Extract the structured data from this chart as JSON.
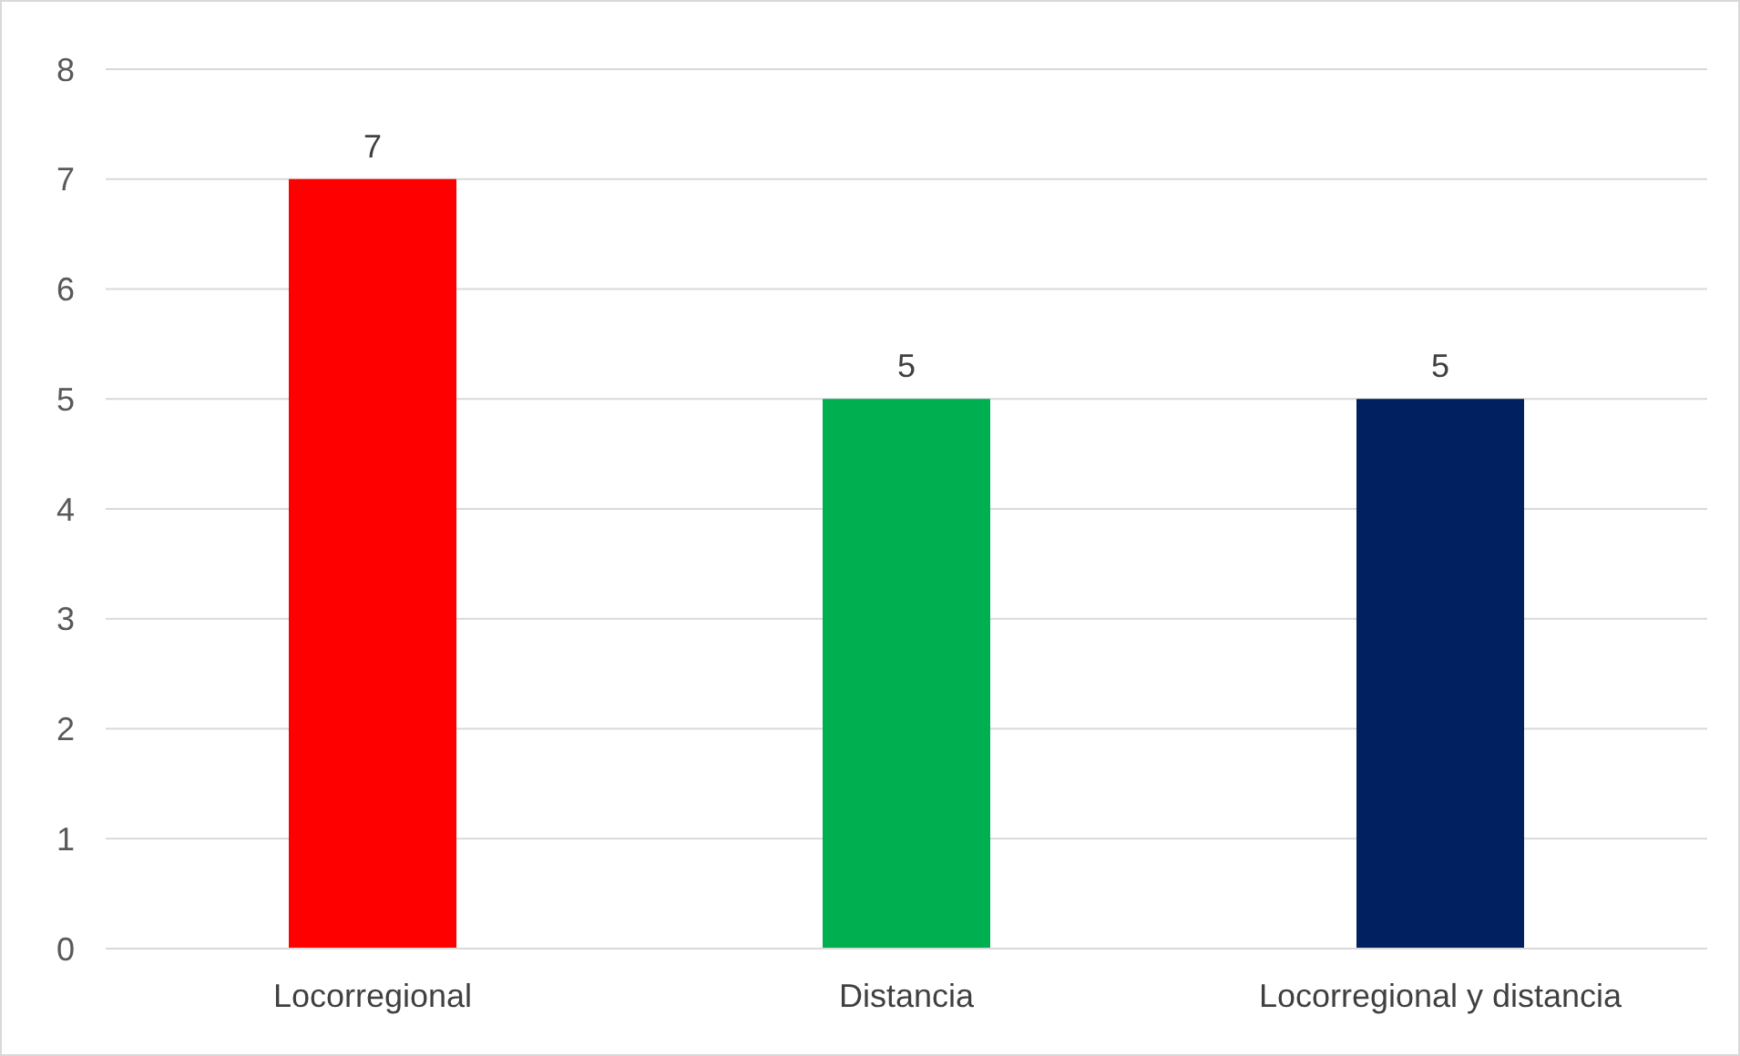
{
  "chart_data": {
    "type": "bar",
    "categories": [
      "Locorregional",
      "Distancia",
      "Locorregional y distancia"
    ],
    "values": [
      7,
      5,
      5
    ],
    "colors": [
      "#ff0000",
      "#00b050",
      "#002060"
    ],
    "ylim": [
      0,
      8
    ],
    "yticks": [
      0,
      1,
      2,
      3,
      4,
      5,
      6,
      7,
      8
    ],
    "grid": "y",
    "data_labels": true
  }
}
